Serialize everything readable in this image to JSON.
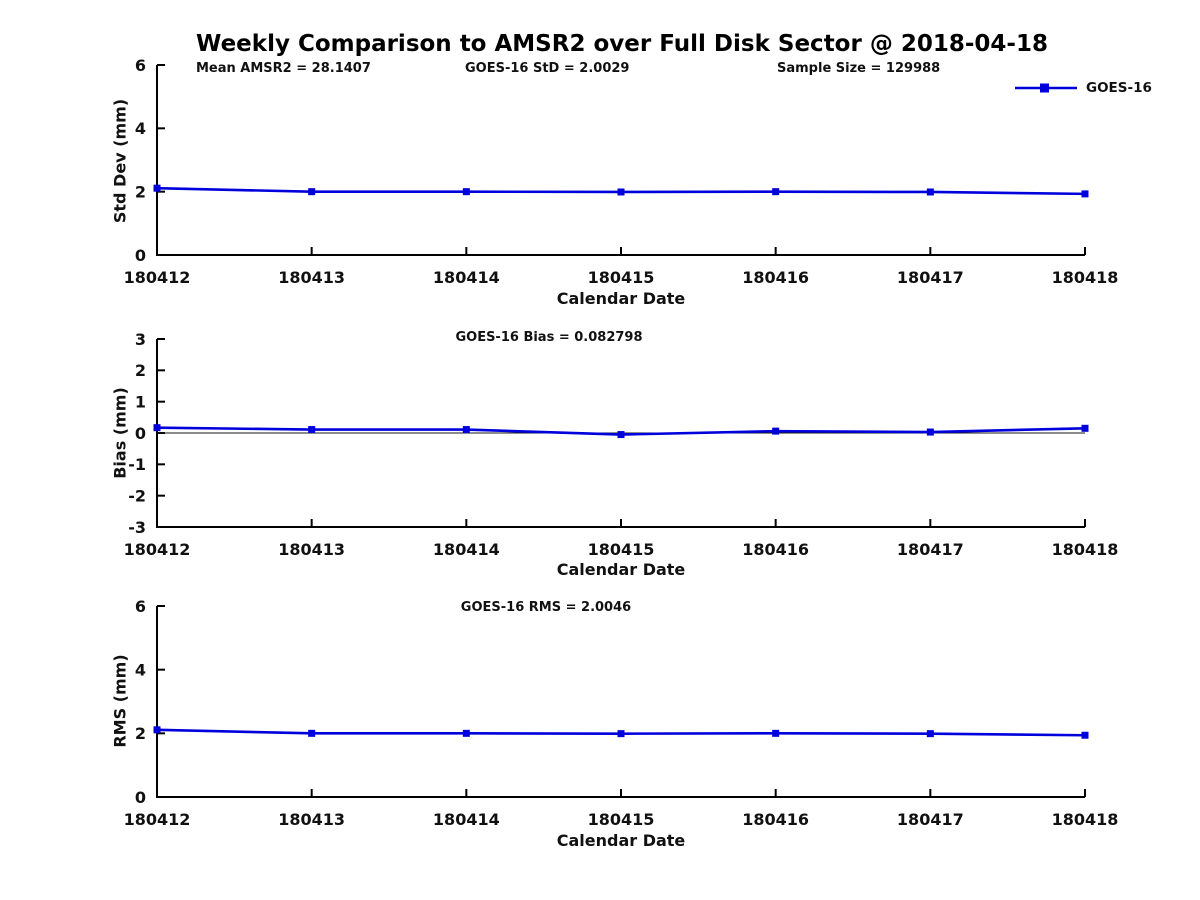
{
  "title": "Weekly Comparison to AMSR2 over Full Disk Sector @ 2018-04-18",
  "colors": {
    "line": "#0000dd",
    "axis": "#000000",
    "zero_line": "#1a1a1a",
    "tick_text": "#111111"
  },
  "legend": {
    "label": "GOES-16",
    "position": "top-right"
  },
  "chart_data": [
    {
      "type": "line",
      "ylabel": "Std Dev (mm)",
      "xlabel": "Calendar Date",
      "categories": [
        "180412",
        "180413",
        "180414",
        "180415",
        "180416",
        "180417",
        "180418"
      ],
      "series": [
        {
          "name": "GOES-16",
          "values": [
            2.11,
            2.0,
            2.0,
            1.99,
            2.0,
            1.99,
            1.93
          ]
        }
      ],
      "ylim": [
        0,
        6
      ],
      "yticks": [
        0,
        2,
        4,
        6
      ],
      "zero_line": false,
      "grid": false,
      "annotations": [
        "Mean AMSR2 = 28.1407",
        "GOES-16 StD = 2.0029",
        "Sample Size = 129988"
      ]
    },
    {
      "type": "line",
      "ylabel": "Bias (mm)",
      "xlabel": "Calendar Date",
      "categories": [
        "180412",
        "180413",
        "180414",
        "180415",
        "180416",
        "180417",
        "180418"
      ],
      "series": [
        {
          "name": "GOES-16",
          "values": [
            0.17,
            0.11,
            0.11,
            -0.05,
            0.06,
            0.03,
            0.15
          ]
        }
      ],
      "ylim": [
        -3,
        3
      ],
      "yticks": [
        3,
        2,
        1,
        0,
        -1,
        -2,
        -3
      ],
      "zero_line": true,
      "grid": false,
      "annotations": [
        "GOES-16 Bias  = 0.082798"
      ]
    },
    {
      "type": "line",
      "ylabel": "RMS (mm)",
      "xlabel": "Calendar Date",
      "categories": [
        "180412",
        "180413",
        "180414",
        "180415",
        "180416",
        "180417",
        "180418"
      ],
      "series": [
        {
          "name": "GOES-16",
          "values": [
            2.11,
            2.0,
            2.0,
            1.99,
            2.0,
            1.99,
            1.94
          ]
        }
      ],
      "ylim": [
        0,
        6
      ],
      "yticks": [
        0,
        2,
        4,
        6
      ],
      "zero_line": false,
      "grid": false,
      "annotations": [
        "GOES-16 RMS = 2.0046"
      ]
    }
  ]
}
